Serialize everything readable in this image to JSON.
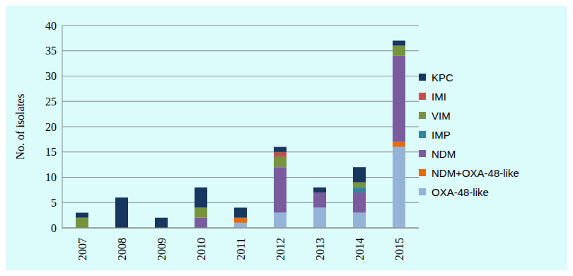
{
  "chart_data": {
    "type": "bar",
    "y_label": "No. of isolates",
    "categories": [
      "2007",
      "2008",
      "2009",
      "2010",
      "2011",
      "2012",
      "2013",
      "2014",
      "2015"
    ],
    "series": [
      {
        "name": "OXA-48-like",
        "color": "#95b3d7",
        "values": [
          0,
          0,
          0,
          0,
          1,
          3,
          4,
          3,
          16
        ]
      },
      {
        "name": "NDM+OXA-48-like",
        "color": "#e46c0a",
        "values": [
          0,
          0,
          0,
          0,
          1,
          0,
          0,
          0,
          1
        ]
      },
      {
        "name": "NDM",
        "color": "#7a5c9e",
        "values": [
          0,
          0,
          0,
          2,
          0,
          9,
          3,
          4,
          17
        ]
      },
      {
        "name": "IMP",
        "color": "#31859c",
        "values": [
          0,
          0,
          0,
          0,
          0,
          0,
          0,
          1,
          0
        ]
      },
      {
        "name": "VIM",
        "color": "#77933c",
        "values": [
          2,
          0,
          0,
          2,
          0,
          2,
          0,
          1,
          2
        ]
      },
      {
        "name": "IMI",
        "color": "#c0504d",
        "values": [
          0,
          0,
          0,
          0,
          0,
          1,
          0,
          0,
          0
        ]
      },
      {
        "name": "KPC",
        "color": "#17375e",
        "values": [
          1,
          6,
          2,
          4,
          2,
          1,
          1,
          3,
          1
        ]
      }
    ],
    "ylim": [
      0,
      40
    ],
    "yticks": [
      0,
      5,
      10,
      15,
      20,
      25,
      30,
      35,
      40
    ],
    "grid": true,
    "stacked": true,
    "legend": "right"
  }
}
